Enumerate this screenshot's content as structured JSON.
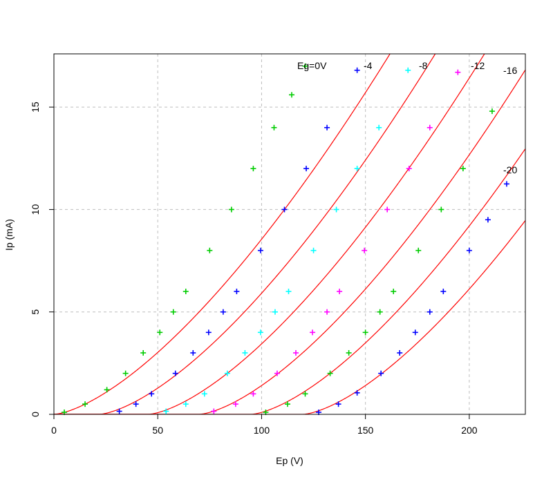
{
  "chart_data": {
    "type": "scatter",
    "xlabel": "Ep (V)",
    "ylabel": "Ip (mA)",
    "xlim": [
      0,
      227
    ],
    "ylim": [
      0,
      17.6
    ],
    "x_ticks": [
      0,
      50,
      100,
      150,
      200
    ],
    "y_ticks": [
      0,
      5,
      10,
      15
    ],
    "grid": true,
    "curve_color": "#ff0000",
    "series": [
      {
        "label": "Eg=0V",
        "color": "#00cc00",
        "points": [
          [
            5,
            0.1
          ],
          [
            15,
            0.5
          ],
          [
            25.5,
            1.2
          ],
          [
            34.5,
            2.0
          ],
          [
            43,
            3.0
          ],
          [
            51,
            4.0
          ],
          [
            57.5,
            5.0
          ],
          [
            63.5,
            6.0
          ],
          [
            75,
            8.0
          ],
          [
            85.5,
            10.0
          ],
          [
            96,
            12.0
          ],
          [
            106,
            14.0
          ],
          [
            114.5,
            15.6
          ],
          [
            121,
            17.0
          ]
        ],
        "fit": {
          "offset": 0,
          "k": 0.00855,
          "n": 1.5
        }
      },
      {
        "label": "-4",
        "color": "#0000ff",
        "points": [
          [
            31.5,
            0.15
          ],
          [
            39.5,
            0.5
          ],
          [
            47,
            1.0
          ],
          [
            58.5,
            2.0
          ],
          [
            67,
            3.0
          ],
          [
            74.5,
            4.0
          ],
          [
            81.5,
            5.0
          ],
          [
            88,
            6.0
          ],
          [
            99.5,
            8.0
          ],
          [
            111,
            10.0
          ],
          [
            121.5,
            12.0
          ],
          [
            131.5,
            14.0
          ],
          [
            146,
            16.8
          ]
        ],
        "fit": {
          "offset": 21.8,
          "k": 0.00855,
          "n": 1.5
        }
      },
      {
        "label": "-8",
        "color": "#00ffff",
        "points": [
          [
            54,
            0.15
          ],
          [
            63.5,
            0.5
          ],
          [
            72.5,
            1.0
          ],
          [
            83.5,
            2.0
          ],
          [
            92,
            3.0
          ],
          [
            99.5,
            4.0
          ],
          [
            106.5,
            5.0
          ],
          [
            113,
            6.0
          ],
          [
            125,
            8.0
          ],
          [
            136,
            10.0
          ],
          [
            146,
            12.0
          ],
          [
            156.5,
            14.0
          ],
          [
            170.5,
            16.8
          ]
        ],
        "fit": {
          "offset": 45.5,
          "k": 0.00855,
          "n": 1.5
        }
      },
      {
        "label": "-12",
        "color": "#ff00ff",
        "points": [
          [
            77,
            0.15
          ],
          [
            87.5,
            0.5
          ],
          [
            96,
            1.0
          ],
          [
            107.5,
            2.0
          ],
          [
            116.5,
            3.0
          ],
          [
            124.5,
            4.0
          ],
          [
            131.5,
            5.0
          ],
          [
            137.5,
            6.0
          ],
          [
            149.5,
            8.0
          ],
          [
            160.5,
            10.0
          ],
          [
            171,
            12.0
          ],
          [
            181,
            14.0
          ],
          [
            194.5,
            16.7
          ]
        ],
        "fit": {
          "offset": 70,
          "k": 0.00855,
          "n": 1.5
        }
      },
      {
        "label": "-16",
        "color": "#00cc00",
        "points": [
          [
            102,
            0.1
          ],
          [
            112.5,
            0.5
          ],
          [
            121,
            1.0
          ],
          [
            133,
            2.0
          ],
          [
            142,
            3.0
          ],
          [
            150,
            4.0
          ],
          [
            157,
            5.0
          ],
          [
            163.5,
            6.0
          ],
          [
            175.5,
            8.0
          ],
          [
            186.5,
            10.0
          ],
          [
            197,
            12.0
          ],
          [
            211,
            14.8
          ]
        ],
        "fit": {
          "offset": 95,
          "k": 0.00855,
          "n": 1.5
        }
      },
      {
        "label": "-20",
        "color": "#0000ff",
        "points": [
          [
            127.5,
            0.1
          ],
          [
            137,
            0.5
          ],
          [
            146,
            1.05
          ],
          [
            157.5,
            2.0
          ],
          [
            166.5,
            3.0
          ],
          [
            174,
            4.0
          ],
          [
            181,
            5.0
          ],
          [
            187.5,
            6.0
          ],
          [
            200,
            8.0
          ],
          [
            209,
            9.5
          ],
          [
            218,
            11.25
          ]
        ],
        "fit": {
          "offset": 120,
          "k": 0.00855,
          "n": 1.5
        }
      }
    ]
  }
}
